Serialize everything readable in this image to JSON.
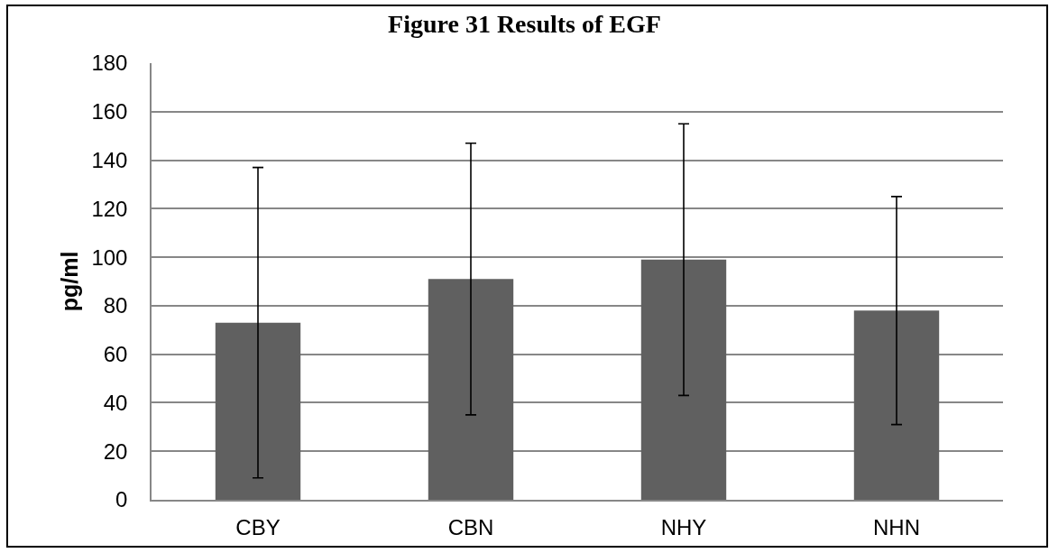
{
  "chart_data": {
    "type": "bar",
    "title": "Figure 31 Results of EGF",
    "ylabel": "pg/ml",
    "categories": [
      "CBY",
      "CBN",
      "NHY",
      "NHN"
    ],
    "values": [
      73,
      91,
      99,
      78
    ],
    "errors": [
      64,
      56,
      56,
      47
    ],
    "color": "#606060",
    "ylim": [
      0,
      180
    ],
    "yticks": [
      0,
      20,
      40,
      60,
      80,
      100,
      120,
      140,
      160,
      180
    ],
    "grid": "y"
  }
}
